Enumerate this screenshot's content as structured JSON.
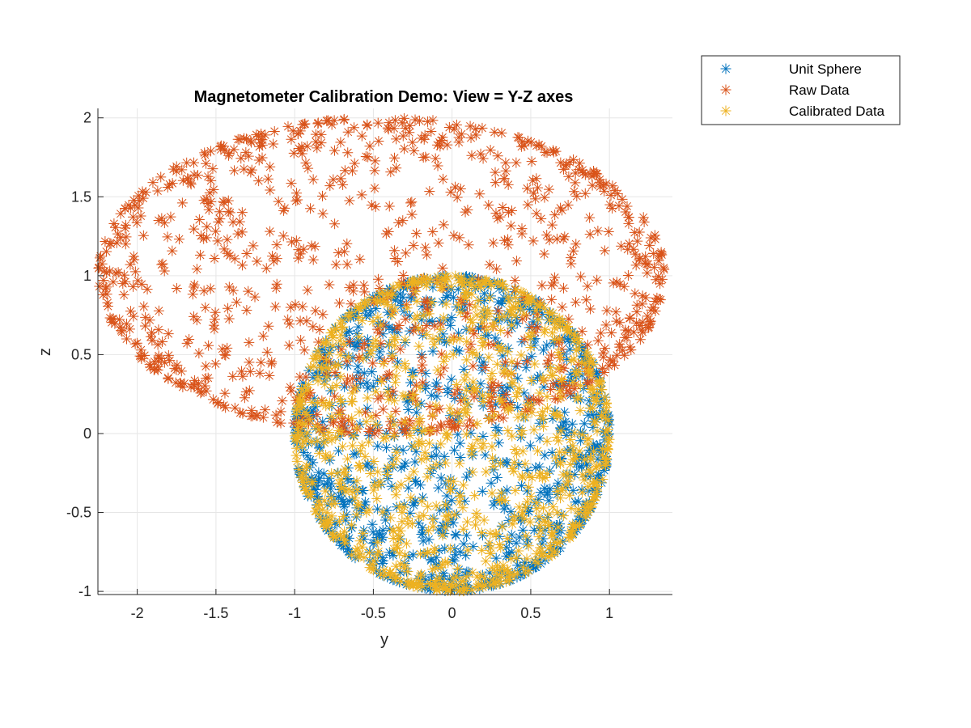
{
  "chart_data": {
    "type": "scatter",
    "title": "Magnetometer Calibration Demo: View = Y-Z axes",
    "xlabel": "y",
    "ylabel": "z",
    "xlim": [
      -2.25,
      1.4
    ],
    "ylim": [
      -1.02,
      2.06
    ],
    "xticks": [
      -2,
      -1.5,
      -1,
      -0.5,
      0,
      0.5,
      1
    ],
    "xtick_labels": [
      "-2",
      "-1.5",
      "-1",
      "-0.5",
      "0",
      "0.5",
      "1"
    ],
    "yticks": [
      -1,
      -0.5,
      0,
      0.5,
      1,
      1.5,
      2
    ],
    "ytick_labels": [
      "-1",
      "-0.5",
      "0",
      "0.5",
      "1",
      "1.5",
      "2"
    ],
    "grid": true,
    "marker": "asterisk",
    "legend_position": "outside-top-right",
    "series": [
      {
        "name": "Unit Sphere",
        "color": "#0072BD",
        "shape": "sphere-projection",
        "center": [
          0,
          0
        ],
        "radius": 1,
        "approx_points": 1000
      },
      {
        "name": "Raw Data",
        "color": "#D95319",
        "shape": "ellipsoid-projection",
        "center": [
          -0.45,
          1.0
        ],
        "radius_y": 1.8,
        "radius_z": 1.0,
        "approx_points": 1000
      },
      {
        "name": "Calibrated Data",
        "color": "#EDB120",
        "shape": "sphere-projection",
        "center": [
          0,
          0
        ],
        "radius": 1,
        "approx_points": 1000
      }
    ]
  }
}
